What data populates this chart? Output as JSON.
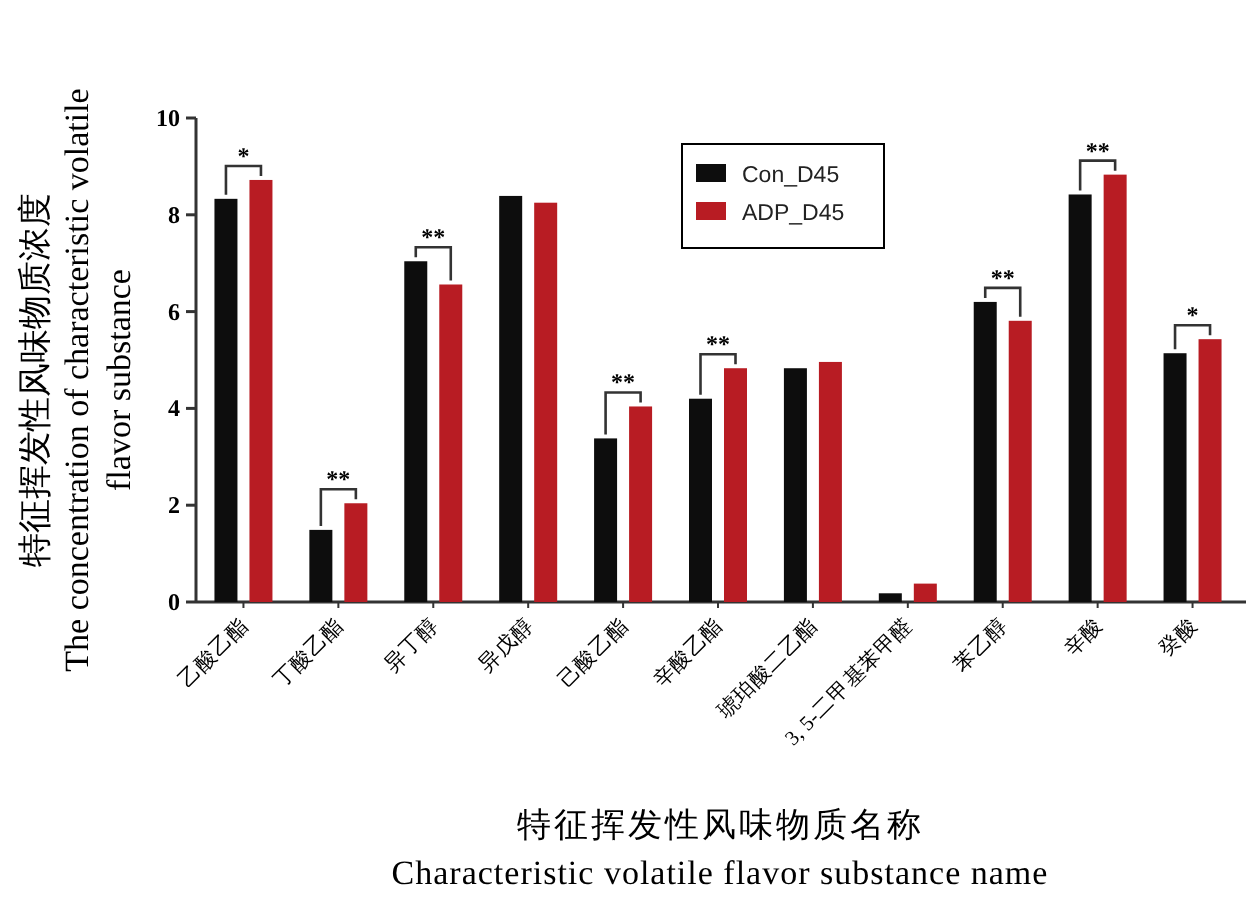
{
  "chart_data": {
    "type": "bar",
    "categories": [
      "乙酸乙酯",
      "丁酸乙酯",
      "异丁醇",
      "异戊醇",
      "己酸乙酯",
      "辛酸乙酯",
      "琥珀酸二乙酯",
      "3, 5-二甲基苯甲醛",
      "苯乙醇",
      "辛酸",
      "癸酸"
    ],
    "series": [
      {
        "name": "Con_D45",
        "color": "#0d0d0d",
        "values": [
          8.33,
          1.49,
          7.04,
          8.39,
          3.38,
          4.2,
          4.83,
          0.18,
          6.2,
          8.42,
          5.14
        ]
      },
      {
        "name": "ADP_D45",
        "color": "#b81c23",
        "values": [
          8.72,
          2.04,
          6.56,
          8.25,
          4.04,
          4.83,
          4.96,
          0.38,
          5.81,
          8.83,
          5.43
        ]
      }
    ],
    "xlabel": "特征挥发性风味物质名称\nCharacteristic volatile flavor substance name",
    "ylabel": "特征挥发性风味物质浓度\nThe concentration of characteristic volatile\nflavor substance",
    "ylim": [
      0,
      10
    ],
    "yticks": [
      0,
      2,
      4,
      6,
      8,
      10
    ],
    "legend": "top",
    "annotations": [
      {
        "text": "*",
        "x": "乙酸乙酯",
        "y": 8.72
      },
      {
        "text": "**",
        "x": "丁酸乙酯",
        "y": 2.04
      },
      {
        "text": "**",
        "x": "异丁醇",
        "y": 7.04
      },
      {
        "text": "**",
        "x": "己酸乙酯",
        "y": 4.04
      },
      {
        "text": "**",
        "x": "辛酸乙酯",
        "y": 4.83
      },
      {
        "text": "**",
        "x": "苯乙醇",
        "y": 6.2
      },
      {
        "text": "**",
        "x": "辛酸",
        "y": 8.83
      },
      {
        "text": "*",
        "x": "癸酸",
        "y": 5.43
      }
    ]
  }
}
